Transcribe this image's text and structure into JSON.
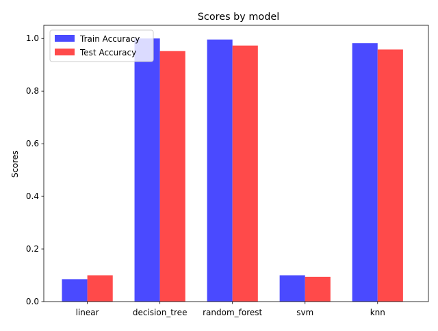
{
  "chart_data": {
    "type": "bar",
    "title": "Scores by model",
    "xlabel": "",
    "ylabel": "Scores",
    "categories": [
      "linear",
      "decision_tree",
      "random_forest",
      "svm",
      "knn"
    ],
    "series": [
      {
        "name": "Train Accuracy",
        "color": "#4a4aff",
        "values": [
          0.085,
          1.0,
          0.996,
          0.1,
          0.982
        ]
      },
      {
        "name": "Test Accuracy",
        "color": "#ff4a4a",
        "values": [
          0.1,
          0.952,
          0.973,
          0.094,
          0.958
        ]
      }
    ],
    "ylim": [
      0,
      1.05
    ],
    "yticks": [
      "0.0",
      "0.2",
      "0.4",
      "0.6",
      "0.8",
      "1.0"
    ],
    "grid": false,
    "legend_position": "top-left"
  }
}
